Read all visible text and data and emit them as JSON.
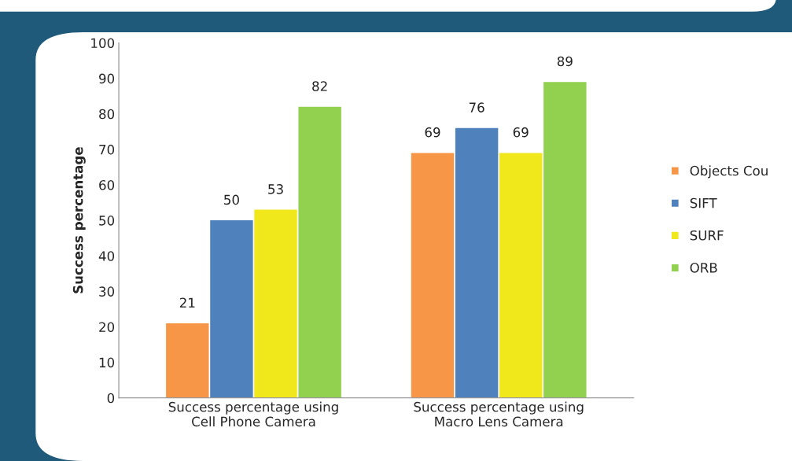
{
  "chart_data": {
    "type": "bar",
    "ylabel": "Success percentage",
    "categories": [
      "Success percentage using\nCell Phone Camera",
      "Success percentage using\nMacro Lens Camera"
    ],
    "series": [
      {
        "name": "Objects Cou",
        "color": "#f79646",
        "values": [
          21,
          69
        ]
      },
      {
        "name": "SIFT",
        "color": "#4f81bd",
        "values": [
          50,
          76
        ]
      },
      {
        "name": "SURF",
        "color": "#f0e81a",
        "values": [
          53,
          69
        ]
      },
      {
        "name": "ORB",
        "color": "#92d050",
        "values": [
          82,
          89
        ]
      }
    ],
    "ylim": [
      0,
      100
    ],
    "yticks": [
      0,
      10,
      20,
      30,
      40,
      50,
      60,
      70,
      80,
      90,
      100
    ],
    "grid": false,
    "legend": "right",
    "data_labels": true
  }
}
